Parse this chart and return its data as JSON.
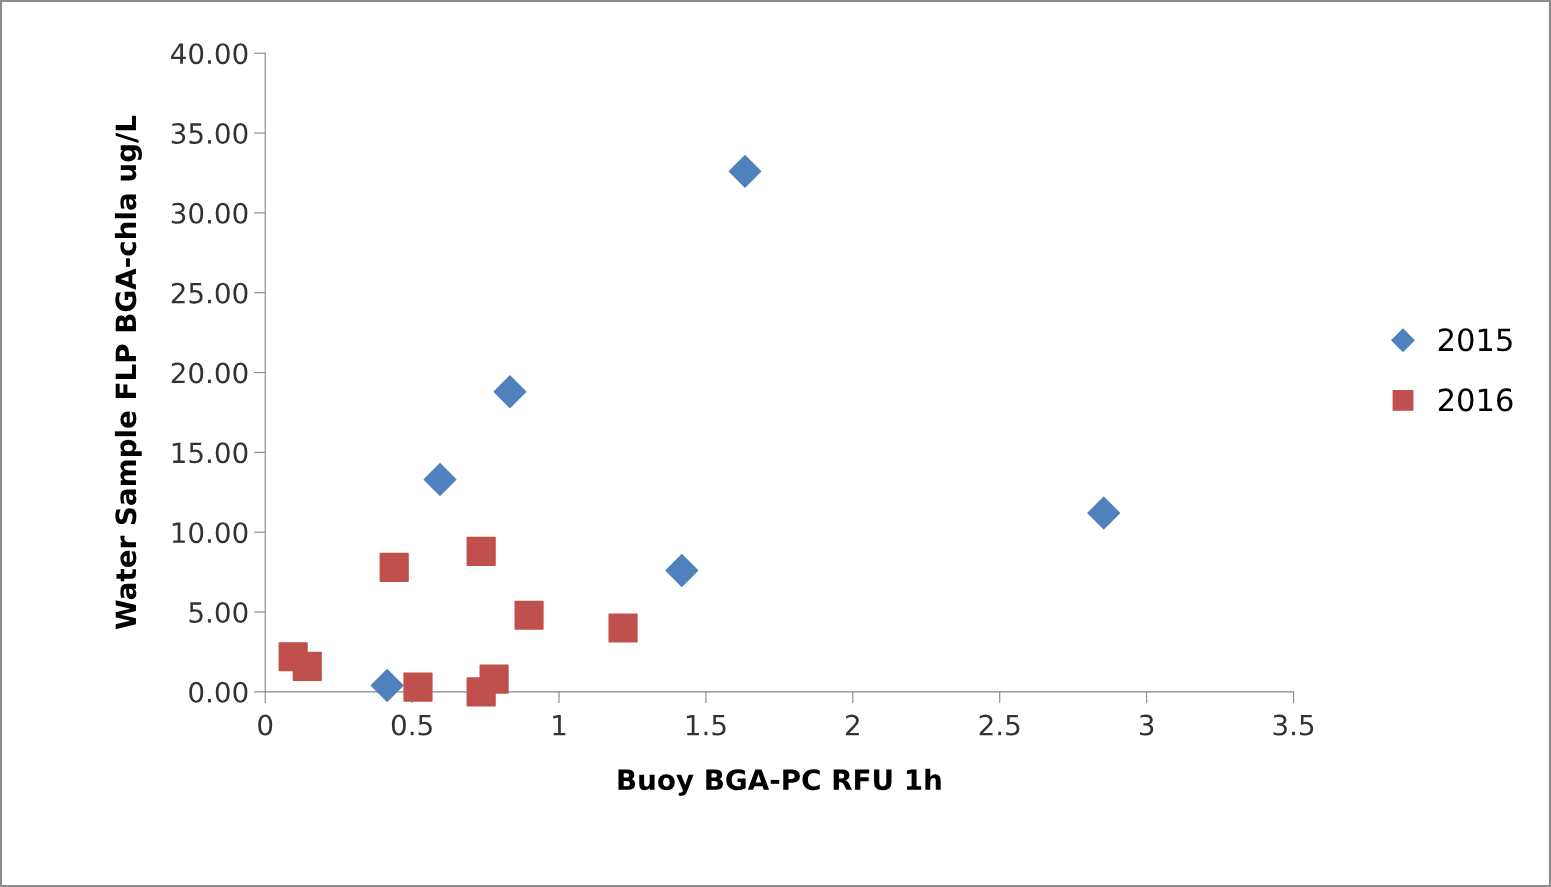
{
  "chart_data": {
    "type": "scatter",
    "xlabel": "Buoy BGA-PC RFU 1h",
    "ylabel": "Water Sample FLP BGA-chla ug/L",
    "xlim": [
      0,
      3.5
    ],
    "xticks": [
      0,
      0.5,
      1,
      1.5,
      2,
      2.5,
      3,
      3.5
    ],
    "ylim": [
      0,
      40
    ],
    "yticks": [
      {
        "value": 0,
        "label": "0.00"
      },
      {
        "value": 5,
        "label": "5.00"
      },
      {
        "value": 10,
        "label": "10.00"
      },
      {
        "value": 15,
        "label": "15.00"
      },
      {
        "value": 20,
        "label": "20.00"
      },
      {
        "value": 25,
        "label": "25.00"
      },
      {
        "value": 30,
        "label": "30.00"
      },
      {
        "value": 35,
        "label": "35.00"
      },
      {
        "value": 40,
        "label": "40.00"
      }
    ],
    "grid": false,
    "legend": "right",
    "series": [
      {
        "name": "2015",
        "color": "#4f81bd",
        "marker": "diamond",
        "x": [
          0.415,
          0.595,
          0.833,
          1.418,
          1.633,
          2.854
        ],
        "values": [
          0.4,
          13.3,
          18.8,
          7.6,
          32.6,
          11.2
        ]
      },
      {
        "name": "2016",
        "color": "#c0504d",
        "marker": "square",
        "x": [
          0.095,
          0.143,
          0.439,
          0.52,
          0.735,
          0.735,
          0.779,
          0.898,
          1.218
        ],
        "values": [
          2.2,
          1.6,
          7.8,
          0.3,
          8.8,
          0.0,
          0.8,
          4.8,
          4.0
        ]
      }
    ]
  }
}
